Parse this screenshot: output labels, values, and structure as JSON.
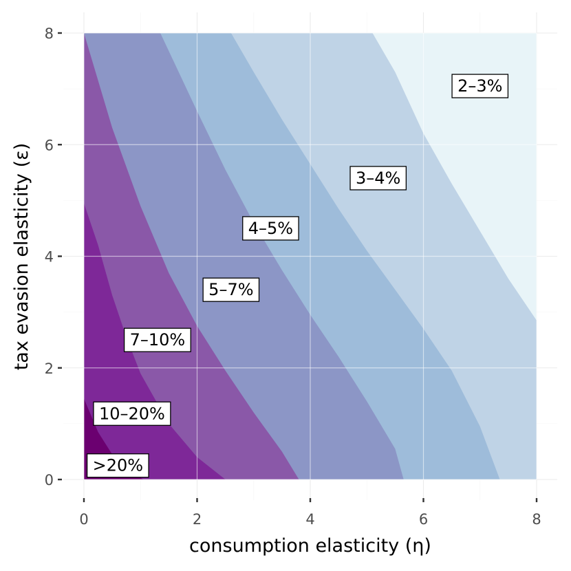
{
  "chart_data": {
    "type": "contour",
    "xlabel": "consumption elasticity (η)",
    "ylabel": "tax evasion elasticity (ε)",
    "xlim": [
      0,
      8
    ],
    "ylim": [
      0,
      8
    ],
    "x_ticks": [
      "0",
      "2",
      "4",
      "6",
      "8"
    ],
    "y_ticks": [
      "0",
      "2",
      "4",
      "6",
      "8"
    ],
    "grid": true,
    "legend": "none",
    "levels": [
      {
        "label": ">20%",
        "color": "#6b0070",
        "label_at": [
          0.6,
          0.25
        ]
      },
      {
        "label": "10–20%",
        "color": "#7e2898",
        "label_at": [
          0.85,
          1.18
        ]
      },
      {
        "label": "7–10%",
        "color": "#8a58a8",
        "label_at": [
          1.3,
          2.5
        ]
      },
      {
        "label": "5–7%",
        "color": "#8c96c6",
        "label_at": [
          2.6,
          3.4
        ]
      },
      {
        "label": "4–5%",
        "color": "#9ebcda",
        "label_at": [
          3.3,
          4.5
        ]
      },
      {
        "label": "3–4%",
        "color": "#bfd3e6",
        "label_at": [
          5.2,
          5.4
        ]
      },
      {
        "label": "2–3%",
        "color": "#e8f4f8",
        "label_at": [
          7.0,
          7.05
        ]
      }
    ],
    "boundaries": [
      {
        "between": ">20% | 10–20%",
        "points": [
          [
            0,
            1.45
          ],
          [
            0.25,
            0.85
          ],
          [
            0.5,
            0.45
          ],
          [
            0.75,
            0.2
          ],
          [
            1.05,
            0
          ]
        ]
      },
      {
        "between": "10–20% | 7–10%",
        "points": [
          [
            0,
            4.95
          ],
          [
            0.25,
            4.2
          ],
          [
            0.5,
            3.3
          ],
          [
            0.75,
            2.55
          ],
          [
            1.0,
            1.9
          ],
          [
            1.5,
            1.0
          ],
          [
            2.0,
            0.4
          ],
          [
            2.5,
            0
          ]
        ]
      },
      {
        "between": "7–10% | 5–7%",
        "points": [
          [
            0,
            8
          ],
          [
            0.5,
            6.3
          ],
          [
            1.0,
            4.9
          ],
          [
            1.5,
            3.7
          ],
          [
            2.0,
            2.75
          ],
          [
            2.5,
            1.95
          ],
          [
            3.0,
            1.2
          ],
          [
            3.5,
            0.5
          ],
          [
            3.8,
            0
          ]
        ]
      },
      {
        "between": "5–7% | 4–5%",
        "points": [
          [
            1.35,
            8
          ],
          [
            2.0,
            6.6
          ],
          [
            2.5,
            5.55
          ],
          [
            3.0,
            4.6
          ],
          [
            3.5,
            3.75
          ],
          [
            4.0,
            2.95
          ],
          [
            4.5,
            2.2
          ],
          [
            5.0,
            1.4
          ],
          [
            5.5,
            0.55
          ],
          [
            5.65,
            0
          ]
        ]
      },
      {
        "between": "4–5% | 3–4%",
        "points": [
          [
            2.6,
            8
          ],
          [
            3.0,
            7.3
          ],
          [
            3.5,
            6.45
          ],
          [
            4.0,
            5.65
          ],
          [
            4.5,
            4.85
          ],
          [
            5.0,
            4.1
          ],
          [
            5.5,
            3.4
          ],
          [
            6.0,
            2.7
          ],
          [
            6.5,
            1.95
          ],
          [
            7.0,
            0.95
          ],
          [
            7.35,
            0
          ]
        ]
      },
      {
        "between": "3–4% | 2–3%",
        "points": [
          [
            5.1,
            8
          ],
          [
            5.5,
            7.3
          ],
          [
            6.0,
            6.2
          ],
          [
            6.5,
            5.3
          ],
          [
            7.0,
            4.45
          ],
          [
            7.5,
            3.6
          ],
          [
            8.0,
            2.85
          ]
        ]
      }
    ]
  }
}
